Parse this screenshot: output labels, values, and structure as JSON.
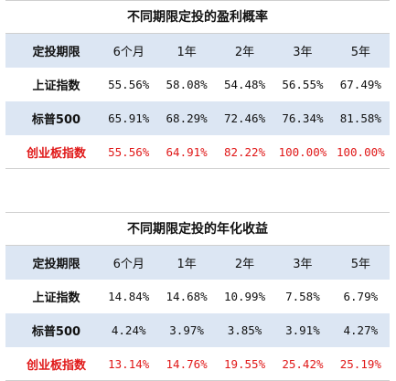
{
  "colors": {
    "header_bg": "#dce6f3",
    "highlight_red": "#e01818",
    "text": "#111111"
  },
  "tables": [
    {
      "title": "不同期限定投的盈利概率",
      "header": [
        "定投期限",
        "6个月",
        "1年",
        "2年",
        "3年",
        "5年"
      ],
      "rows": [
        {
          "name": "上证指数",
          "values": [
            "55.56%",
            "58.08%",
            "54.48%",
            "56.55%",
            "67.49%"
          ]
        },
        {
          "name": "标普500",
          "values": [
            "65.91%",
            "68.29%",
            "72.46%",
            "76.34%",
            "81.58%"
          ]
        },
        {
          "name": "创业板指数",
          "values": [
            "55.56%",
            "64.91%",
            "82.22%",
            "100.00%",
            "100.00%"
          ]
        }
      ]
    },
    {
      "title": "不同期限定投的年化收益",
      "header": [
        "定投期限",
        "6个月",
        "1年",
        "2年",
        "3年",
        "5年"
      ],
      "rows": [
        {
          "name": "上证指数",
          "values": [
            "14.84%",
            "14.68%",
            "10.99%",
            "7.58%",
            "6.79%"
          ]
        },
        {
          "name": "标普500",
          "values": [
            "4.24%",
            "3.97%",
            "3.85%",
            "3.91%",
            "4.27%"
          ]
        },
        {
          "name": "创业板指数",
          "values": [
            "13.14%",
            "14.76%",
            "19.55%",
            "25.42%",
            "25.19%"
          ]
        }
      ]
    }
  ]
}
